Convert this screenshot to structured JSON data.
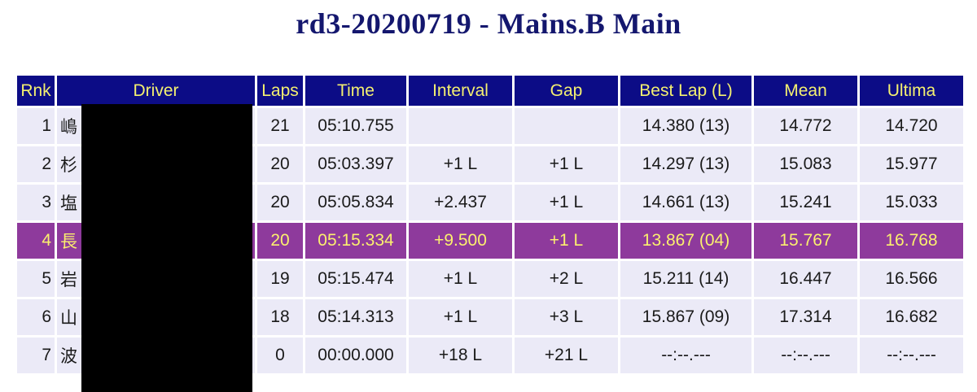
{
  "title": "rd3-20200719 - Mains.B Main",
  "columns": [
    "Rnk",
    "Driver",
    "Laps",
    "Time",
    "Interval",
    "Gap",
    "Best Lap (L)",
    "Mean",
    "Ultima"
  ],
  "rows": [
    {
      "rank": "1",
      "driver": "嶋",
      "laps": "21",
      "time": "05:10.755",
      "interval": "",
      "gap": "",
      "best_lap": "14.380 (13)",
      "mean": "14.772",
      "ultima": "14.720",
      "highlight": false
    },
    {
      "rank": "2",
      "driver": "杉",
      "laps": "20",
      "time": "05:03.397",
      "interval": "+1 L",
      "gap": "+1 L",
      "best_lap": "14.297 (13)",
      "mean": "15.083",
      "ultima": "15.977",
      "highlight": false
    },
    {
      "rank": "3",
      "driver": "塩",
      "laps": "20",
      "time": "05:05.834",
      "interval": "+2.437",
      "gap": "+1 L",
      "best_lap": "14.661 (13)",
      "mean": "15.241",
      "ultima": "15.033",
      "highlight": false
    },
    {
      "rank": "4",
      "driver": "長",
      "laps": "20",
      "time": "05:15.334",
      "interval": "+9.500",
      "gap": "+1 L",
      "best_lap": "13.867 (04)",
      "mean": "15.767",
      "ultima": "16.768",
      "highlight": true
    },
    {
      "rank": "5",
      "driver": "岩",
      "laps": "19",
      "time": "05:15.474",
      "interval": "+1 L",
      "gap": "+2 L",
      "best_lap": "15.211 (14)",
      "mean": "16.447",
      "ultima": "16.566",
      "highlight": false
    },
    {
      "rank": "6",
      "driver": "山",
      "laps": "18",
      "time": "05:14.313",
      "interval": "+1 L",
      "gap": "+3 L",
      "best_lap": "15.867 (09)",
      "mean": "17.314",
      "ultima": "16.682",
      "highlight": false
    },
    {
      "rank": "7",
      "driver": "波",
      "laps": "0",
      "time": "00:00.000",
      "interval": "+18 L",
      "gap": "+21 L",
      "best_lap": "--:--.---",
      "mean": "--:--.---",
      "ultima": "--:--.---",
      "highlight": false
    }
  ],
  "colors": {
    "title": "#14176e",
    "header_bg": "#0c0c86",
    "header_text": "#f4f070",
    "row_bg": "#ebeaf7",
    "highlight_bg": "#8e3a9c",
    "highlight_text": "#fbf06e",
    "redaction": "#000000"
  }
}
